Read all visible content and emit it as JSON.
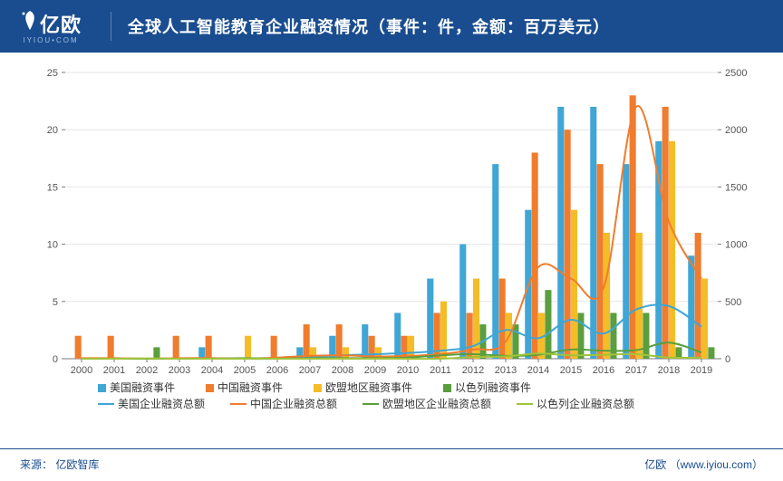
{
  "brand": {
    "name": "亿欧",
    "tagline": "IYIOU•COM"
  },
  "title": "全球人工智能教育企业融资情况（事件：件，金额：百万美元）",
  "footer": {
    "source_label": "来源：",
    "source": "亿欧智库",
    "attr": "亿欧",
    "url": "www.iyiou.com"
  },
  "chart": {
    "type": "bar+line",
    "categories": [
      "2000",
      "2001",
      "2002",
      "2003",
      "2004",
      "2005",
      "2006",
      "2007",
      "2008",
      "2009",
      "2010",
      "2011",
      "2012",
      "2013",
      "2014",
      "2015",
      "2016",
      "2017",
      "2018",
      "2019"
    ],
    "y_left": {
      "min": 0,
      "max": 25,
      "step": 5
    },
    "y_right": {
      "min": 0,
      "max": 2500,
      "step": 500
    },
    "background": "#ffffff",
    "gridline_color": "#e6e6e6",
    "axis_text_color": "#555555",
    "axis_font_size": 11,
    "tick_color": "#7a7a7a",
    "bar_group_width": 0.82,
    "title_font_size": 18,
    "title_color": "#ffffff",
    "header_bg": "#1a4d8f",
    "line_width": 2,
    "bars": [
      {
        "key": "us_events",
        "label": "美国融资事件",
        "color": "#3fa6d6",
        "values": [
          0,
          0,
          0,
          0,
          1,
          0,
          0,
          1,
          2,
          3,
          4,
          7,
          10,
          17,
          13,
          22,
          22,
          17,
          19,
          9
        ]
      },
      {
        "key": "cn_events",
        "label": "中国融资事件",
        "color": "#f07c2e",
        "values": [
          2,
          2,
          0,
          2,
          2,
          0,
          2,
          3,
          3,
          2,
          2,
          4,
          4,
          7,
          18,
          20,
          17,
          23,
          22,
          11
        ]
      },
      {
        "key": "eu_events",
        "label": "欧盟地区融资事件",
        "color": "#f4bd27",
        "values": [
          0,
          0,
          0,
          0,
          0,
          2,
          0,
          1,
          1,
          1,
          2,
          5,
          7,
          4,
          4,
          13,
          11,
          11,
          19,
          7
        ]
      },
      {
        "key": "il_events",
        "label": "以色列融资事件",
        "color": "#5a9e3d",
        "values": [
          0,
          0,
          1,
          0,
          0,
          0,
          0,
          0,
          0,
          0,
          0,
          0,
          3,
          3,
          6,
          4,
          4,
          4,
          1,
          1
        ]
      }
    ],
    "lines": [
      {
        "key": "us_amount",
        "label": "美国企业融资总额",
        "color": "#3fa6d6",
        "values": [
          0,
          0,
          0,
          0,
          5,
          0,
          0,
          10,
          30,
          40,
          50,
          70,
          110,
          250,
          180,
          340,
          220,
          430,
          460,
          280
        ]
      },
      {
        "key": "cn_amount",
        "label": "中国企业融资总额",
        "color": "#f07c2e",
        "values": [
          5,
          5,
          0,
          5,
          5,
          0,
          10,
          25,
          30,
          20,
          25,
          40,
          80,
          150,
          800,
          700,
          620,
          2200,
          1200,
          700
        ]
      },
      {
        "key": "eu_amount",
        "label": "欧盟地区企业融资总额",
        "color": "#5a9e3d",
        "values": [
          0,
          0,
          0,
          0,
          0,
          5,
          0,
          5,
          5,
          5,
          10,
          30,
          40,
          25,
          35,
          80,
          70,
          75,
          140,
          55
        ]
      },
      {
        "key": "il_amount",
        "label": "以色列企业融资总额",
        "color": "#a0c33a",
        "values": [
          0,
          0,
          3,
          0,
          0,
          0,
          0,
          0,
          0,
          0,
          0,
          0,
          15,
          20,
          45,
          30,
          35,
          40,
          10,
          10
        ]
      }
    ]
  }
}
